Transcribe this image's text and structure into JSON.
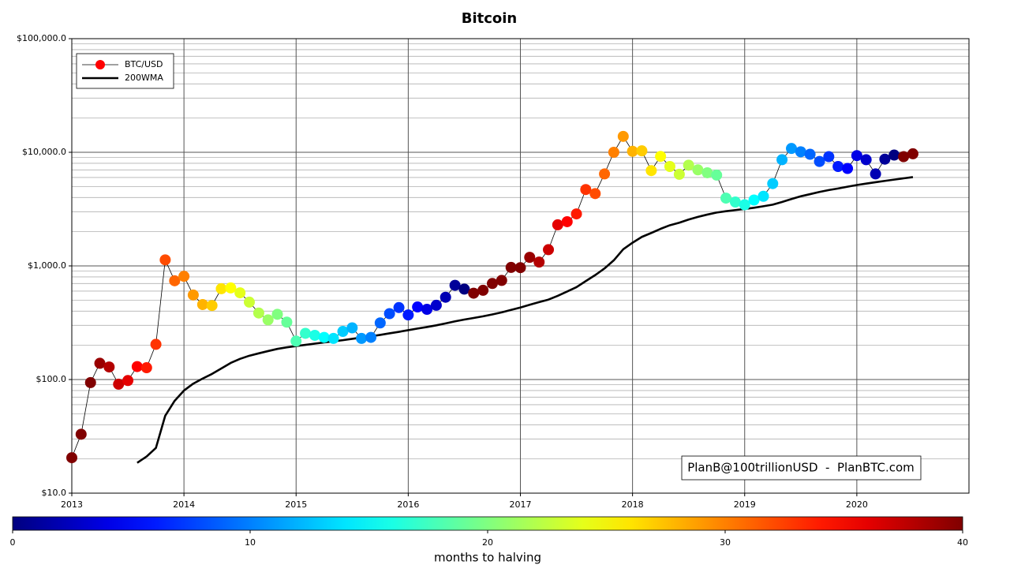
{
  "chart_data": {
    "type": "line",
    "title": "Bitcoin",
    "annotation": "PlanB@100trillionUSD  -  PlanBTC.com",
    "log_scale_y": true,
    "grid": true,
    "legend": "upper left",
    "xlim": [
      2013,
      2021
    ],
    "xticks": [
      2013,
      2014,
      2015,
      2016,
      2017,
      2018,
      2019,
      2020
    ],
    "ylim": [
      10,
      100000
    ],
    "yticks": [
      {
        "value": 10,
        "label": "$10.0"
      },
      {
        "value": 100,
        "label": "$100.0"
      },
      {
        "value": 1000,
        "label": "$1,000.0"
      },
      {
        "value": 10000,
        "label": "$10,000.0"
      },
      {
        "value": 100000,
        "label": "$100,000.0"
      }
    ],
    "yminorticks": [
      20,
      30,
      40,
      50,
      60,
      70,
      80,
      90,
      200,
      300,
      400,
      500,
      600,
      700,
      800,
      900,
      2000,
      3000,
      4000,
      5000,
      6000,
      7000,
      8000,
      9000,
      20000,
      30000,
      40000,
      50000,
      60000,
      70000,
      80000,
      90000
    ],
    "x": [
      2013,
      2013.083,
      2013.167,
      2013.25,
      2013.333,
      2013.417,
      2013.5,
      2013.583,
      2013.667,
      2013.75,
      2013.833,
      2013.917,
      2014,
      2014.083,
      2014.167,
      2014.25,
      2014.333,
      2014.417,
      2014.5,
      2014.583,
      2014.667,
      2014.75,
      2014.833,
      2014.917,
      2015,
      2015.083,
      2015.167,
      2015.25,
      2015.333,
      2015.417,
      2015.5,
      2015.583,
      2015.667,
      2015.75,
      2015.833,
      2015.917,
      2016,
      2016.083,
      2016.167,
      2016.25,
      2016.333,
      2016.417,
      2016.5,
      2016.583,
      2016.667,
      2016.75,
      2016.833,
      2016.917,
      2017,
      2017.083,
      2017.167,
      2017.25,
      2017.333,
      2017.417,
      2017.5,
      2017.583,
      2017.667,
      2017.75,
      2017.833,
      2017.917,
      2018,
      2018.083,
      2018.167,
      2018.25,
      2018.333,
      2018.417,
      2018.5,
      2018.583,
      2018.667,
      2018.75,
      2018.833,
      2018.917,
      2019,
      2019.083,
      2019.167,
      2019.25,
      2019.333,
      2019.417,
      2019.5,
      2019.583,
      2019.667,
      2019.75,
      2019.833,
      2019.917,
      2020,
      2020.083,
      2020.167,
      2020.25,
      2020.333,
      2020.417,
      2020.5
    ],
    "series": [
      {
        "name": "BTC/USD",
        "color": "#ff0000",
        "line_color": "#000000",
        "values": [
          20.5,
          33,
          94,
          139,
          129,
          91,
          98,
          130,
          127,
          204,
          1130,
          740,
          810,
          555,
          457,
          448,
          630,
          640,
          580,
          480,
          385,
          335,
          375,
          320,
          218,
          255,
          245,
          235,
          230,
          265,
          285,
          230,
          235,
          315,
          380,
          430,
          370,
          435,
          415,
          450,
          530,
          675,
          625,
          575,
          610,
          700,
          745,
          970,
          965,
          1190,
          1080,
          1390,
          2300,
          2450,
          2870,
          4700,
          4330,
          6450,
          10000,
          13800,
          10200,
          10300,
          6900,
          9200,
          7500,
          6400,
          7700,
          7000,
          6600,
          6300,
          3950,
          3650,
          3450,
          3800,
          4100,
          5300,
          8600,
          10800,
          10100,
          9600,
          8300,
          9150,
          7500,
          7200,
          9350,
          8600,
          6450,
          8700,
          9450,
          9150,
          9700
        ],
        "months_to_halving": [
          40,
          40,
          40,
          39,
          38,
          37,
          36,
          35,
          34,
          33,
          32,
          31,
          30,
          29,
          28,
          27,
          26,
          25,
          24,
          23,
          22,
          21,
          20,
          19,
          18,
          17,
          16,
          15,
          14,
          13,
          12,
          11,
          10,
          9,
          8,
          7,
          6,
          5,
          4,
          3,
          2,
          1,
          0,
          40,
          40,
          40,
          40,
          40,
          40,
          39,
          38,
          37,
          36,
          35,
          34,
          33,
          32,
          31,
          30,
          29,
          28,
          27,
          26,
          25,
          24,
          23,
          22,
          21,
          20,
          19,
          18,
          17,
          16,
          15,
          14,
          13,
          12,
          11,
          10,
          9,
          8,
          7,
          6,
          5,
          4,
          3,
          2,
          1,
          0,
          40,
          40
        ]
      },
      {
        "name": "200WMA",
        "color": "#000000",
        "values": [
          null,
          null,
          null,
          null,
          null,
          null,
          null,
          18.5,
          21,
          25,
          48,
          65,
          80,
          92,
          102,
          112,
          125,
          140,
          152,
          162,
          170,
          178,
          186,
          192,
          197,
          202,
          207,
          212,
          217,
          222,
          228,
          234,
          240,
          247,
          255,
          263,
          272,
          281,
          290,
          300,
          312,
          325,
          337,
          348,
          360,
          374,
          390,
          410,
          430,
          455,
          480,
          505,
          545,
          595,
          650,
          735,
          830,
          950,
          1120,
          1400,
          1600,
          1800,
          1950,
          2120,
          2280,
          2400,
          2560,
          2700,
          2830,
          2950,
          3030,
          3100,
          3170,
          3250,
          3350,
          3460,
          3650,
          3880,
          4100,
          4280,
          4480,
          4650,
          4800,
          4980,
          5150,
          5300,
          5450,
          5600,
          5750,
          5900,
          6050
        ]
      }
    ],
    "colorbar": {
      "label": "months to halving",
      "lim": [
        0,
        40
      ],
      "ticks": [
        0,
        10,
        20,
        30,
        40
      ]
    }
  }
}
